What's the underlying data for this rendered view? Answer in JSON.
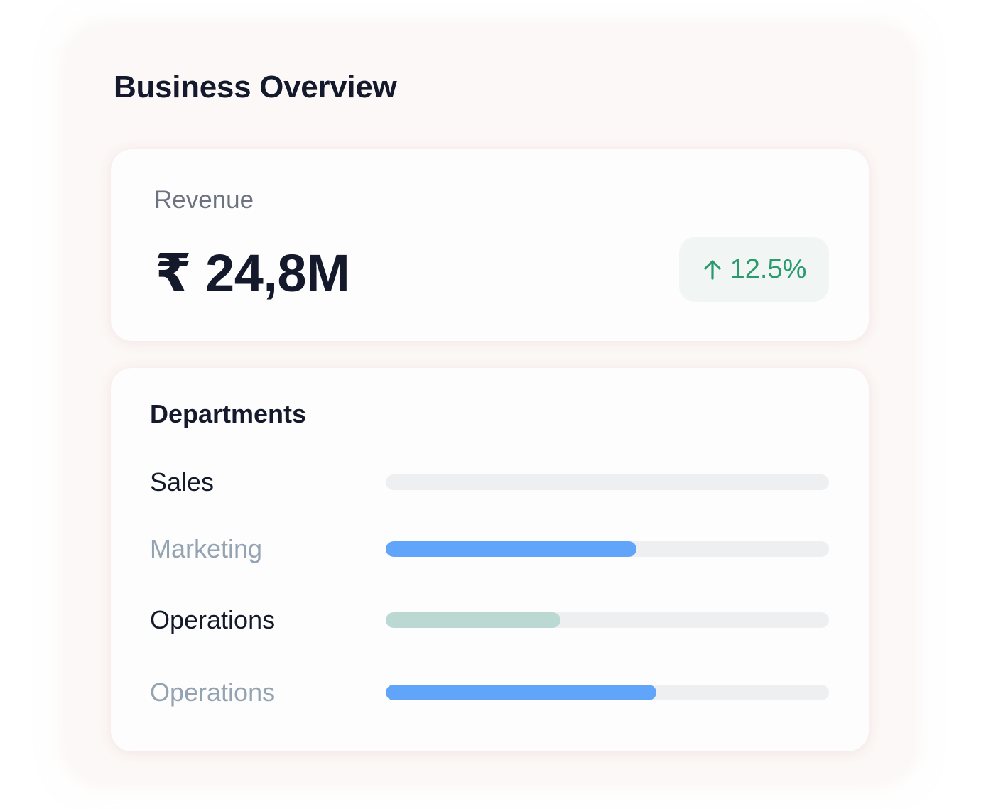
{
  "title": "Business Overview",
  "revenue": {
    "label": "Revenue",
    "value": "₹ 24,8M",
    "change": "12.5%",
    "change_icon": "arrow-up-icon",
    "change_color": "#2a9a6f"
  },
  "departments": {
    "title": "Departments",
    "items": [
      {
        "label": "Sales",
        "progress": 0.0,
        "fill_color": "#60a5fa",
        "label_style": "dark"
      },
      {
        "label": "Marketing",
        "progress": 0.565,
        "fill_color": "#60a5fa",
        "label_style": "muted"
      },
      {
        "label": "Operations",
        "progress": 0.395,
        "fill_color": "#bcd8d3",
        "label_style": "dark"
      },
      {
        "label": "Operations",
        "progress": 0.61,
        "fill_color": "#60a5fa",
        "label_style": "muted"
      }
    ]
  }
}
